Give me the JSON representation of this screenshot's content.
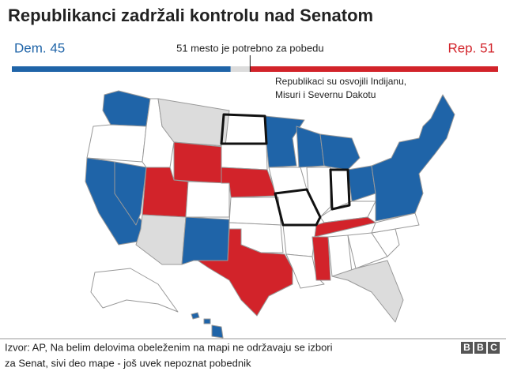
{
  "header": {
    "title": "Republikanci zadržali kontrolu nad Senatom"
  },
  "seats": [
    {
      "label": "Dem. 45",
      "value": 45,
      "color": "#1f64a8"
    },
    {
      "value": 4,
      "color": "#dcdcdc"
    },
    {
      "label": "Rep. 51",
      "value": 51,
      "color": "#d2232a"
    }
  ],
  "majority": {
    "label": "51 mesto je potrebno za pobedu",
    "value": 51
  },
  "annotation": [
    "Republikaci su osvojili Indijanu,",
    "Misuri i Severnu Dakotu"
  ],
  "footer": {
    "lines": [
      "Izvor: AP, Na belim delovima obeleženim na mapi ne održavaju se izbori",
      "za Senat, sivi deo mape - još uvek nepoznat pobednik"
    ],
    "logo": [
      "B",
      "B",
      "C"
    ]
  }
}
